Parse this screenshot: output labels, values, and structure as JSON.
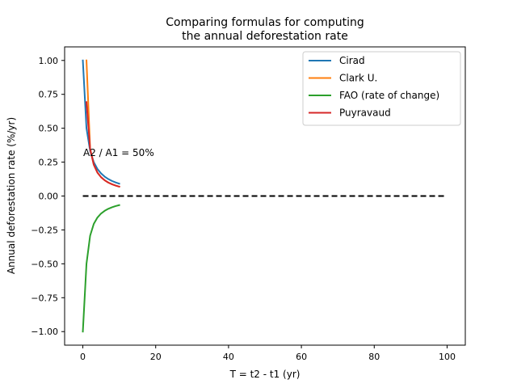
{
  "chart_data": {
    "type": "line",
    "title": "Comparing formulas for computing\nthe annual deforestation rate",
    "title_lines": [
      "Comparing formulas for computing",
      "the annual deforestation rate"
    ],
    "xlabel": "T = t2 - t1 (yr)",
    "ylabel": "Annual deforestation rate (%/yr)",
    "xlim": [
      -5,
      105
    ],
    "ylim": [
      -1.1,
      1.1
    ],
    "xticks": [
      0,
      20,
      40,
      60,
      80,
      100
    ],
    "yticks": [
      -1.0,
      -0.75,
      -0.5,
      -0.25,
      0.0,
      0.25,
      0.5,
      0.75,
      1.0
    ],
    "xtick_labels": [
      "0",
      "20",
      "40",
      "60",
      "80",
      "100"
    ],
    "ytick_labels": [
      "−1.00",
      "−0.75",
      "−0.50",
      "−0.25",
      "0.00",
      "0.25",
      "0.50",
      "0.75",
      "1.00"
    ],
    "grid": false,
    "legend_position": "top-right",
    "annotation": "A2 / A1 = 50%",
    "series": [
      {
        "name": "Cirad",
        "color": "#1f77b4",
        "x": [
          0,
          1,
          2,
          3,
          4,
          5,
          6,
          7,
          8,
          9,
          10
        ],
        "y": [
          1.0,
          0.5,
          0.333,
          0.25,
          0.2,
          0.167,
          0.143,
          0.125,
          0.111,
          0.1,
          0.091
        ]
      },
      {
        "name": "Clark U.",
        "color": "#ff7f0e",
        "x": [
          1,
          2,
          3,
          4,
          5,
          6,
          7,
          8,
          9,
          10
        ],
        "y": [
          1.0,
          0.35,
          0.231,
          0.173,
          0.139,
          0.116,
          0.099,
          0.087,
          0.077,
          0.069
        ]
      },
      {
        "name": "FAO (rate of change)",
        "color": "#2ca02c",
        "x": [
          0,
          1,
          2,
          3,
          4,
          5,
          6,
          7,
          8,
          9,
          10
        ],
        "y": [
          -1.0,
          -0.5,
          -0.293,
          -0.206,
          -0.159,
          -0.129,
          -0.109,
          -0.094,
          -0.083,
          -0.074,
          -0.067
        ]
      },
      {
        "name": "Puyravaud",
        "color": "#d62728",
        "x": [
          1,
          2,
          3,
          4,
          5,
          6,
          7,
          8,
          9,
          10
        ],
        "y": [
          0.693,
          0.347,
          0.231,
          0.173,
          0.139,
          0.116,
          0.099,
          0.087,
          0.077,
          0.069
        ]
      }
    ],
    "reference_line": {
      "x": [
        0,
        100
      ],
      "y": [
        0,
        0
      ],
      "color": "#000000",
      "style": "dashed"
    }
  }
}
